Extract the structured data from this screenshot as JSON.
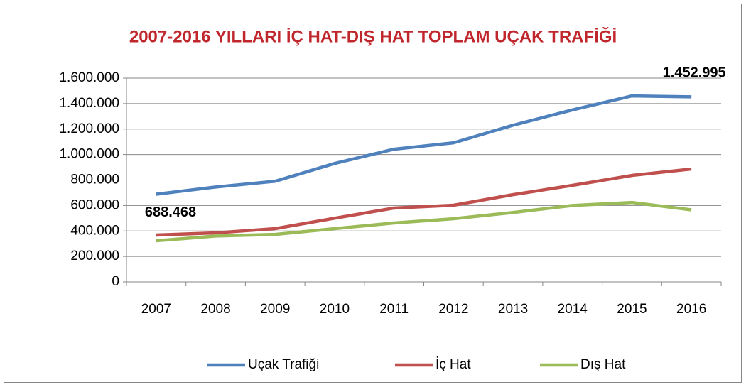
{
  "chart_data": {
    "type": "line",
    "title": "2007-2016 YILLARI İÇ HAT-DIŞ HAT TOPLAM UÇAK TRAFİĞİ",
    "categories": [
      "2007",
      "2008",
      "2009",
      "2010",
      "2011",
      "2012",
      "2013",
      "2014",
      "2015",
      "2016"
    ],
    "series": [
      {
        "name": "Uçak Trafiği",
        "color": "#4f81bd",
        "values": [
          688468,
          745000,
          790000,
          930000,
          1042000,
          1092000,
          1230000,
          1350000,
          1460000,
          1452995
        ],
        "value_labels": [
          "688.468",
          null,
          null,
          null,
          null,
          null,
          null,
          null,
          null,
          "1.452.995"
        ]
      },
      {
        "name": "İç Hat",
        "color": "#c0504d",
        "values": [
          368000,
          385000,
          418000,
          500000,
          580000,
          602000,
          685000,
          758000,
          836000,
          886000
        ]
      },
      {
        "name": "Dış Hat",
        "color": "#9bbb59",
        "values": [
          323000,
          360000,
          373000,
          418000,
          463000,
          496000,
          545000,
          600000,
          624000,
          566000
        ]
      }
    ],
    "ylim": [
      0,
      1600000
    ],
    "yticks": [
      0,
      {
        "value": 200000,
        "label": "200.000"
      },
      {
        "value": 400000,
        "label": "400.000"
      },
      {
        "value": 600000,
        "label": "600.000"
      },
      {
        "value": 800000,
        "label": "800.000"
      },
      {
        "value": 1000000,
        "label": "1.000.000"
      },
      {
        "value": 1200000,
        "label": "1.200.000"
      },
      {
        "value": 1400000,
        "label": "1.400.000"
      },
      {
        "value": 1600000,
        "label": "1.600.000"
      }
    ],
    "grid": true,
    "legend": "bottom"
  }
}
